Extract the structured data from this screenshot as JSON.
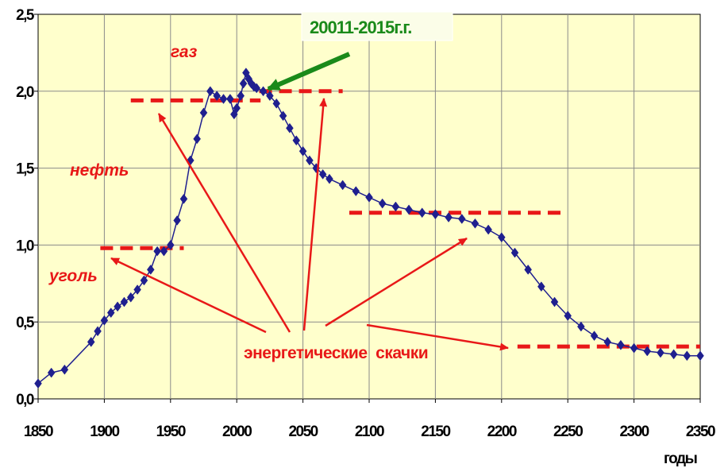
{
  "chart_data": {
    "type": "scatter",
    "xlabel": "годы",
    "ylabel": "",
    "xlim": [
      1850,
      2350
    ],
    "ylim": [
      0,
      2.5
    ],
    "x_ticks": [
      "1850",
      "1900",
      "1950",
      "2000",
      "2050",
      "2100",
      "2150",
      "2200",
      "2250",
      "2300",
      "2350"
    ],
    "y_ticks": [
      "0,0",
      "0,5",
      "1,0",
      "1,5",
      "2,0",
      "2,5"
    ],
    "grid": true,
    "colors": {
      "plot_bg": "#ffffcc",
      "grid": "#8a8a8a",
      "series": "#1f1f8f",
      "accent": "#e81818",
      "callout": "#1a8a1a"
    },
    "series": [
      {
        "marker": "diamond",
        "points": [
          [
            1850,
            0.1
          ],
          [
            1860,
            0.17
          ],
          [
            1870,
            0.19
          ],
          [
            1890,
            0.37
          ],
          [
            1895,
            0.44
          ],
          [
            1900,
            0.51
          ],
          [
            1905,
            0.56
          ],
          [
            1910,
            0.6
          ],
          [
            1915,
            0.63
          ],
          [
            1920,
            0.66
          ],
          [
            1925,
            0.71
          ],
          [
            1930,
            0.77
          ],
          [
            1935,
            0.84
          ],
          [
            1940,
            0.96
          ],
          [
            1945,
            0.96
          ],
          [
            1950,
            1.0
          ],
          [
            1955,
            1.16
          ],
          [
            1960,
            1.3
          ],
          [
            1965,
            1.55
          ],
          [
            1970,
            1.69
          ],
          [
            1975,
            1.86
          ],
          [
            1980,
            2.0
          ],
          [
            1985,
            1.97
          ],
          [
            1990,
            1.95
          ],
          [
            1995,
            1.95
          ],
          [
            1998,
            1.85
          ],
          [
            2000,
            1.89
          ],
          [
            2003,
            1.97
          ],
          [
            2005,
            2.05
          ],
          [
            2007,
            2.12
          ],
          [
            2009,
            2.08
          ],
          [
            2011,
            2.05
          ],
          [
            2013,
            2.03
          ],
          [
            2015,
            2.02
          ],
          [
            2020,
            2.0
          ],
          [
            2025,
            1.97
          ],
          [
            2030,
            1.92
          ],
          [
            2035,
            1.84
          ],
          [
            2040,
            1.76
          ],
          [
            2045,
            1.68
          ],
          [
            2050,
            1.61
          ],
          [
            2055,
            1.55
          ],
          [
            2060,
            1.5
          ],
          [
            2065,
            1.46
          ],
          [
            2070,
            1.43
          ],
          [
            2080,
            1.39
          ],
          [
            2090,
            1.35
          ],
          [
            2100,
            1.31
          ],
          [
            2110,
            1.27
          ],
          [
            2120,
            1.25
          ],
          [
            2130,
            1.23
          ],
          [
            2140,
            1.21
          ],
          [
            2150,
            1.2
          ],
          [
            2160,
            1.18
          ],
          [
            2170,
            1.17
          ],
          [
            2180,
            1.14
          ],
          [
            2190,
            1.1
          ],
          [
            2200,
            1.05
          ],
          [
            2210,
            0.95
          ],
          [
            2220,
            0.84
          ],
          [
            2230,
            0.73
          ],
          [
            2240,
            0.63
          ],
          [
            2250,
            0.54
          ],
          [
            2260,
            0.47
          ],
          [
            2270,
            0.41
          ],
          [
            2280,
            0.37
          ],
          [
            2290,
            0.35
          ],
          [
            2300,
            0.33
          ],
          [
            2310,
            0.31
          ],
          [
            2320,
            0.3
          ],
          [
            2330,
            0.29
          ],
          [
            2340,
            0.28
          ],
          [
            2350,
            0.28
          ]
        ]
      }
    ],
    "annotations": {
      "gas": "газ",
      "oil": "нефть",
      "coal": "уголь",
      "jumps": "энергетические  скачки",
      "callout": "20011-2015г.г."
    },
    "plateaus": [
      {
        "x": [
          1897,
          1960
        ],
        "y": 0.98
      },
      {
        "x": [
          1920,
          2018
        ],
        "y": 1.94
      },
      {
        "x": [
          2017,
          2080
        ],
        "y": 2.0
      },
      {
        "x": [
          2085,
          2245
        ],
        "y": 1.21
      },
      {
        "x": [
          2212,
          2350
        ],
        "y": 0.34
      }
    ]
  }
}
